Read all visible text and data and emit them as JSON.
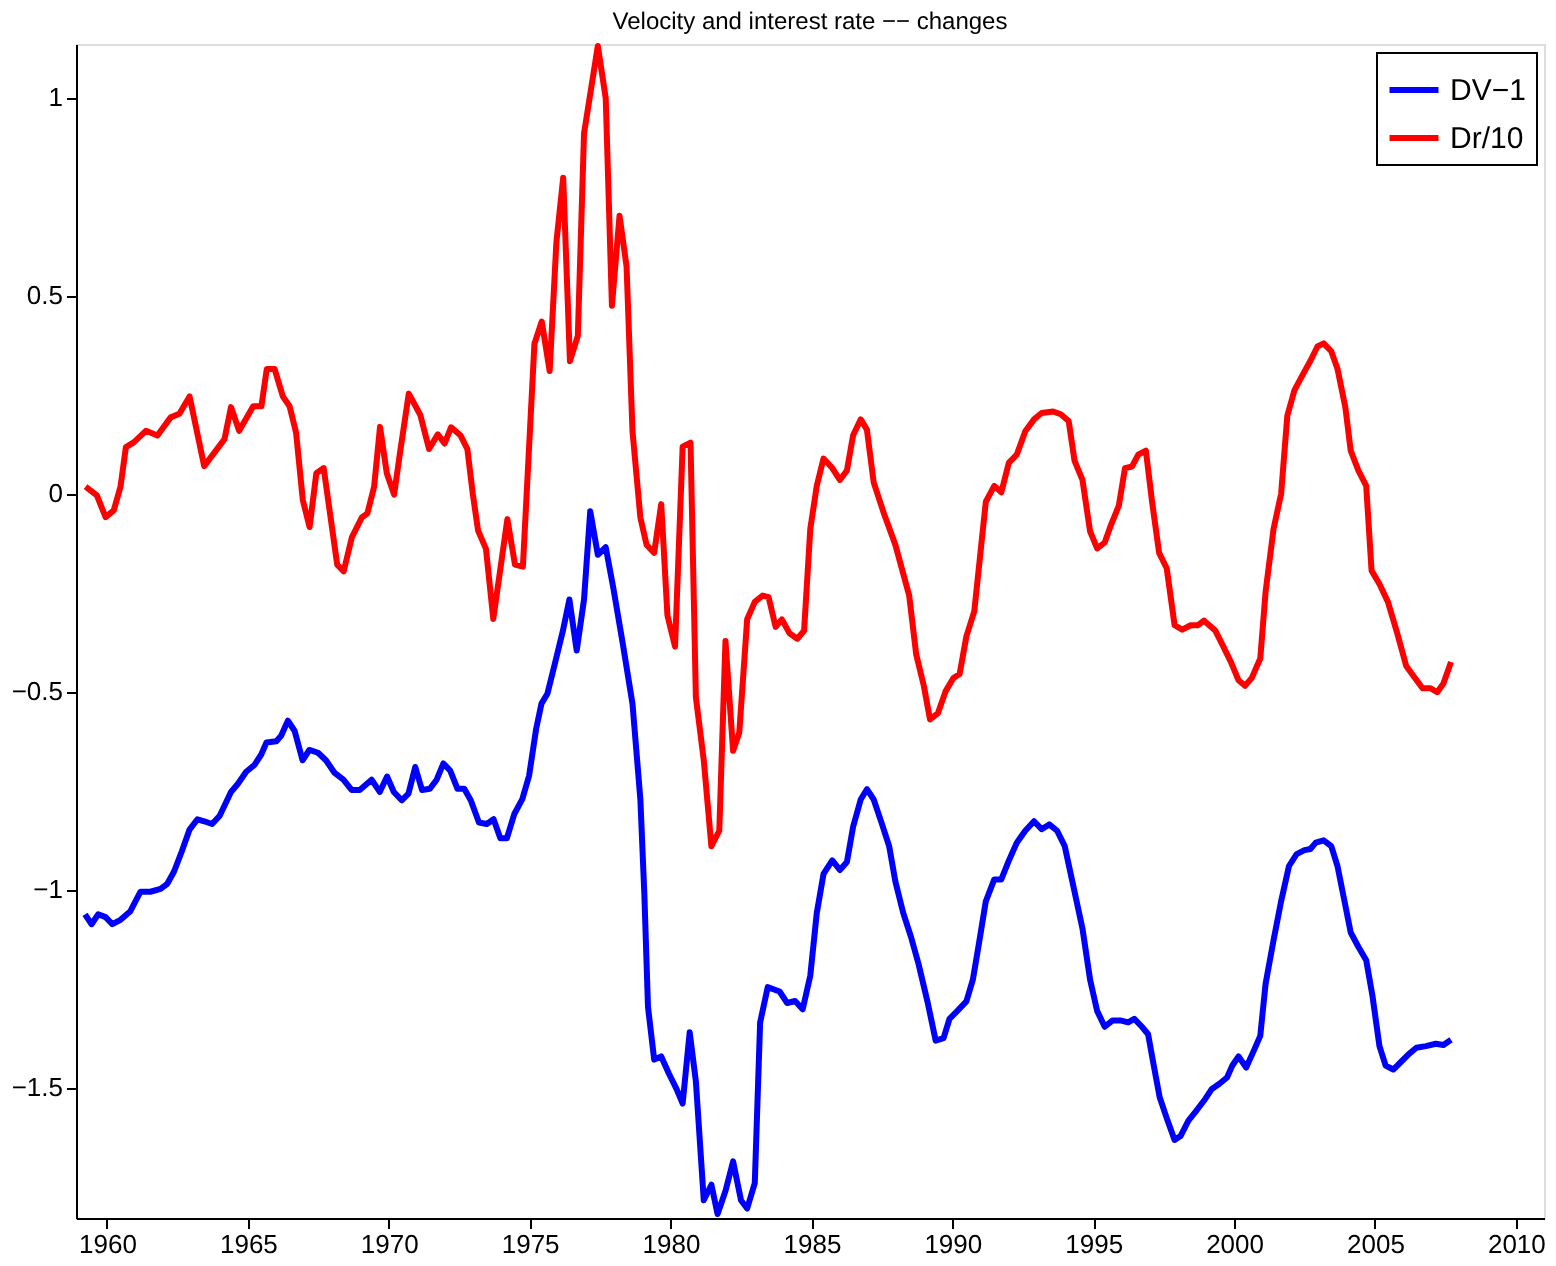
{
  "chart_data": {
    "type": "line",
    "title": "Velocity and interest rate −− changes",
    "xlim": [
      1958.9,
      2011
    ],
    "xticks": [
      1960,
      1965,
      1970,
      1975,
      1980,
      1985,
      1990,
      1995,
      2000,
      2005,
      2010
    ],
    "ylim": [
      -1.83,
      1.135
    ],
    "yticks": [
      -1.5,
      -1,
      -0.5,
      0,
      0.5,
      1
    ],
    "grid": false,
    "legend": "top right",
    "line_style": "solid",
    "marker": "none",
    "series": [
      {
        "name": "DV−1",
        "color": "#0000ff",
        "x": [
          1959.22,
          1959.45,
          1959.69,
          1959.95,
          1960.19,
          1960.48,
          1960.83,
          1961.19,
          1961.54,
          1961.9,
          1962.14,
          1962.38,
          1962.66,
          1962.93,
          1963.21,
          1963.45,
          1963.73,
          1964.0,
          1964.4,
          1964.64,
          1964.94,
          1965.23,
          1965.47,
          1965.66,
          1966.01,
          1966.18,
          1966.42,
          1966.66,
          1966.94,
          1967.18,
          1967.49,
          1967.77,
          1968.08,
          1968.39,
          1968.68,
          1968.97,
          1969.39,
          1969.68,
          1969.94,
          1970.18,
          1970.46,
          1970.7,
          1970.94,
          1971.18,
          1971.46,
          1971.7,
          1971.94,
          1972.18,
          1972.44,
          1972.68,
          1972.91,
          1973.2,
          1973.48,
          1973.72,
          1973.96,
          1974.19,
          1974.46,
          1974.74,
          1974.98,
          1975.23,
          1975.42,
          1975.63,
          1975.91,
          1976.18,
          1976.41,
          1976.67,
          1976.93,
          1977.15,
          1977.42,
          1977.7,
          1977.97,
          1978.3,
          1978.65,
          1978.93,
          1979.07,
          1979.2,
          1979.42,
          1979.67,
          1979.94,
          1980.22,
          1980.43,
          1980.68,
          1980.9,
          1981.18,
          1981.45,
          1981.67,
          1981.95,
          1982.22,
          1982.5,
          1982.72,
          1982.99,
          1983.18,
          1983.45,
          1983.87,
          1984.14,
          1984.42,
          1984.69,
          1984.96,
          1985.19,
          1985.43,
          1985.74,
          1986.01,
          1986.26,
          1986.48,
          1986.75,
          1986.97,
          1987.21,
          1987.49,
          1987.76,
          1987.98,
          1988.26,
          1988.53,
          1988.8,
          1989.13,
          1989.41,
          1989.69,
          1989.9,
          1990.18,
          1990.5,
          1990.73,
          1990.94,
          1991.19,
          1991.49,
          1991.74,
          1992.01,
          1992.29,
          1992.59,
          1992.9,
          1993.17,
          1993.44,
          1993.72,
          1993.99,
          1994.26,
          1994.62,
          1994.89,
          1995.14,
          1995.41,
          1995.69,
          1995.96,
          1996.24,
          1996.46,
          1996.73,
          1996.95,
          1997.15,
          1997.36,
          1997.64,
          1997.89,
          1998.1,
          1998.38,
          1998.65,
          1998.93,
          1999.2,
          1999.48,
          1999.75,
          1999.94,
          2000.16,
          2000.43,
          2000.71,
          2000.93,
          2001.12,
          2001.4,
          2001.67,
          2001.95,
          2002.22,
          2002.5,
          2002.71,
          2002.9,
          2003.18,
          2003.45,
          2003.67,
          2003.92,
          2004.14,
          2004.41,
          2004.69,
          2004.91,
          2005.16,
          2005.38,
          2005.65,
          2005.92,
          2006.2,
          2006.47,
          2006.81,
          2007.16,
          2007.43,
          2007.7
        ],
        "values": [
          -1.063,
          -1.088,
          -1.063,
          -1.07,
          -1.088,
          -1.077,
          -1.055,
          -1.006,
          -1.006,
          -0.999,
          -0.986,
          -0.955,
          -0.903,
          -0.849,
          -0.823,
          -0.828,
          -0.835,
          -0.814,
          -0.754,
          -0.734,
          -0.703,
          -0.686,
          -0.66,
          -0.629,
          -0.626,
          -0.612,
          -0.574,
          -0.6,
          -0.674,
          -0.648,
          -0.655,
          -0.674,
          -0.706,
          -0.723,
          -0.749,
          -0.749,
          -0.723,
          -0.754,
          -0.715,
          -0.754,
          -0.775,
          -0.758,
          -0.691,
          -0.749,
          -0.746,
          -0.723,
          -0.682,
          -0.7,
          -0.746,
          -0.746,
          -0.775,
          -0.831,
          -0.835,
          -0.823,
          -0.871,
          -0.871,
          -0.809,
          -0.772,
          -0.713,
          -0.595,
          -0.531,
          -0.506,
          -0.426,
          -0.347,
          -0.268,
          -0.397,
          -0.268,
          -0.045,
          -0.155,
          -0.136,
          -0.239,
          -0.377,
          -0.531,
          -0.773,
          -1.01,
          -1.297,
          -1.43,
          -1.422,
          -1.465,
          -1.505,
          -1.541,
          -1.361,
          -1.485,
          -1.785,
          -1.746,
          -1.82,
          -1.762,
          -1.687,
          -1.785,
          -1.806,
          -1.742,
          -1.336,
          -1.247,
          -1.258,
          -1.287,
          -1.282,
          -1.303,
          -1.218,
          -1.06,
          -0.961,
          -0.927,
          -0.951,
          -0.931,
          -0.842,
          -0.773,
          -0.747,
          -0.773,
          -0.832,
          -0.891,
          -0.98,
          -1.06,
          -1.119,
          -1.188,
          -1.287,
          -1.382,
          -1.376,
          -1.327,
          -1.307,
          -1.283,
          -1.228,
          -1.139,
          -1.03,
          -0.975,
          -0.975,
          -0.927,
          -0.882,
          -0.852,
          -0.828,
          -0.848,
          -0.836,
          -0.852,
          -0.891,
          -0.98,
          -1.099,
          -1.228,
          -1.307,
          -1.347,
          -1.331,
          -1.331,
          -1.336,
          -1.327,
          -1.347,
          -1.366,
          -1.445,
          -1.525,
          -1.584,
          -1.633,
          -1.623,
          -1.584,
          -1.56,
          -1.534,
          -1.505,
          -1.491,
          -1.475,
          -1.445,
          -1.422,
          -1.45,
          -1.406,
          -1.37,
          -1.238,
          -1.129,
          -1.03,
          -0.941,
          -0.911,
          -0.901,
          -0.898,
          -0.882,
          -0.876,
          -0.891,
          -0.941,
          -1.03,
          -1.109,
          -1.145,
          -1.179,
          -1.268,
          -1.396,
          -1.445,
          -1.455,
          -1.436,
          -1.416,
          -1.4,
          -1.396,
          -1.39,
          -1.393,
          -1.38
        ]
      },
      {
        "name": "Dr/10",
        "color": "#ff0000",
        "x": [
          1959.24,
          1959.64,
          1959.95,
          1960.24,
          1960.48,
          1960.67,
          1960.95,
          1961.38,
          1961.79,
          1962.26,
          1962.57,
          1962.93,
          1963.45,
          1964.17,
          1964.4,
          1964.69,
          1965.19,
          1965.48,
          1965.67,
          1965.95,
          1966.24,
          1966.48,
          1966.71,
          1966.95,
          1967.19,
          1967.43,
          1967.69,
          1968.17,
          1968.4,
          1968.69,
          1969.05,
          1969.24,
          1969.48,
          1969.69,
          1969.93,
          1970.19,
          1970.4,
          1970.71,
          1971.12,
          1971.43,
          1971.74,
          1971.98,
          1972.21,
          1972.55,
          1972.79,
          1972.98,
          1973.17,
          1973.45,
          1973.71,
          1974.21,
          1974.48,
          1974.76,
          1975.17,
          1975.43,
          1975.71,
          1975.95,
          1976.19,
          1976.43,
          1976.71,
          1976.93,
          1977.42,
          1977.7,
          1977.92,
          1978.19,
          1978.44,
          1978.65,
          1978.93,
          1979.15,
          1979.42,
          1979.67,
          1979.89,
          1980.16,
          1980.43,
          1980.71,
          1980.9,
          1981.18,
          1981.45,
          1981.73,
          1981.95,
          1982.22,
          1982.44,
          1982.72,
          1982.99,
          1983.27,
          1983.48,
          1983.73,
          1983.95,
          1984.22,
          1984.5,
          1984.74,
          1984.96,
          1985.19,
          1985.43,
          1985.74,
          1986.01,
          1986.26,
          1986.48,
          1986.75,
          1986.97,
          1987.21,
          1987.57,
          1987.98,
          1988.47,
          1988.72,
          1988.99,
          1989.21,
          1989.49,
          1989.76,
          1990.04,
          1990.26,
          1990.5,
          1990.78,
          1991.19,
          1991.49,
          1991.74,
          1992.01,
          1992.29,
          1992.59,
          1992.9,
          1993.17,
          1993.58,
          1993.85,
          1994.13,
          1994.34,
          1994.62,
          1994.89,
          1995.14,
          1995.41,
          1995.63,
          1995.91,
          1996.13,
          1996.38,
          1996.6,
          1996.87,
          1997.09,
          1997.34,
          1997.61,
          1997.89,
          1998.16,
          1998.46,
          1998.71,
          1998.93,
          1999.34,
          1999.62,
          1999.89,
          2000.16,
          2000.39,
          2000.63,
          2000.93,
          2001.12,
          2001.4,
          2001.67,
          2001.89,
          2002.14,
          2002.41,
          2002.71,
          2002.96,
          2003.18,
          2003.45,
          2003.67,
          2003.95,
          2004.14,
          2004.41,
          2004.69,
          2004.88,
          2005.16,
          2005.46,
          2005.79,
          2006.11,
          2006.42,
          2006.69,
          2006.97,
          2007.21,
          2007.43,
          2007.7
        ],
        "values": [
          0.017,
          -0.005,
          -0.06,
          -0.043,
          0.017,
          0.117,
          0.129,
          0.158,
          0.146,
          0.192,
          0.201,
          0.245,
          0.069,
          0.137,
          0.218,
          0.158,
          0.22,
          0.22,
          0.314,
          0.314,
          0.245,
          0.22,
          0.154,
          -0.017,
          -0.085,
          0.051,
          0.064,
          -0.18,
          -0.197,
          -0.111,
          -0.06,
          -0.051,
          0.017,
          0.168,
          0.051,
          -0.003,
          0.103,
          0.252,
          0.198,
          0.112,
          0.149,
          0.126,
          0.167,
          0.146,
          0.112,
          0,
          -0.094,
          -0.14,
          -0.317,
          -0.065,
          -0.18,
          -0.185,
          0.378,
          0.434,
          0.309,
          0.635,
          0.797,
          0.334,
          0.398,
          0.909,
          1.13,
          0.998,
          0.474,
          0.701,
          0.573,
          0.157,
          -0.061,
          -0.13,
          -0.15,
          -0.027,
          -0.308,
          -0.387,
          0.118,
          0.128,
          -0.515,
          -0.674,
          -0.891,
          -0.852,
          -0.373,
          -0.65,
          -0.604,
          -0.318,
          -0.274,
          -0.258,
          -0.262,
          -0.337,
          -0.318,
          -0.353,
          -0.367,
          -0.347,
          -0.09,
          0.019,
          0.088,
          0.064,
          0.034,
          0.058,
          0.147,
          0.187,
          0.161,
          0.028,
          -0.05,
          -0.13,
          -0.258,
          -0.407,
          -0.486,
          -0.571,
          -0.555,
          -0.5,
          -0.466,
          -0.456,
          -0.361,
          -0.298,
          -0.021,
          0.019,
          0.003,
          0.078,
          0.098,
          0.157,
          0.187,
          0.203,
          0.207,
          0.2,
          0.183,
          0.082,
          0.034,
          -0.096,
          -0.139,
          -0.124,
          -0.08,
          -0.031,
          0.064,
          0.068,
          0.098,
          0.108,
          -0.021,
          -0.15,
          -0.189,
          -0.333,
          -0.344,
          -0.333,
          -0.333,
          -0.321,
          -0.347,
          -0.387,
          -0.426,
          -0.472,
          -0.486,
          -0.466,
          -0.417,
          -0.248,
          -0.09,
          -0.001,
          0.196,
          0.26,
          0.296,
          0.335,
          0.371,
          0.379,
          0.359,
          0.315,
          0.217,
          0.108,
          0.058,
          0.019,
          -0.195,
          -0.229,
          -0.274,
          -0.353,
          -0.436,
          -0.466,
          -0.492,
          -0.492,
          -0.502,
          -0.48,
          -0.426
        ]
      }
    ]
  }
}
